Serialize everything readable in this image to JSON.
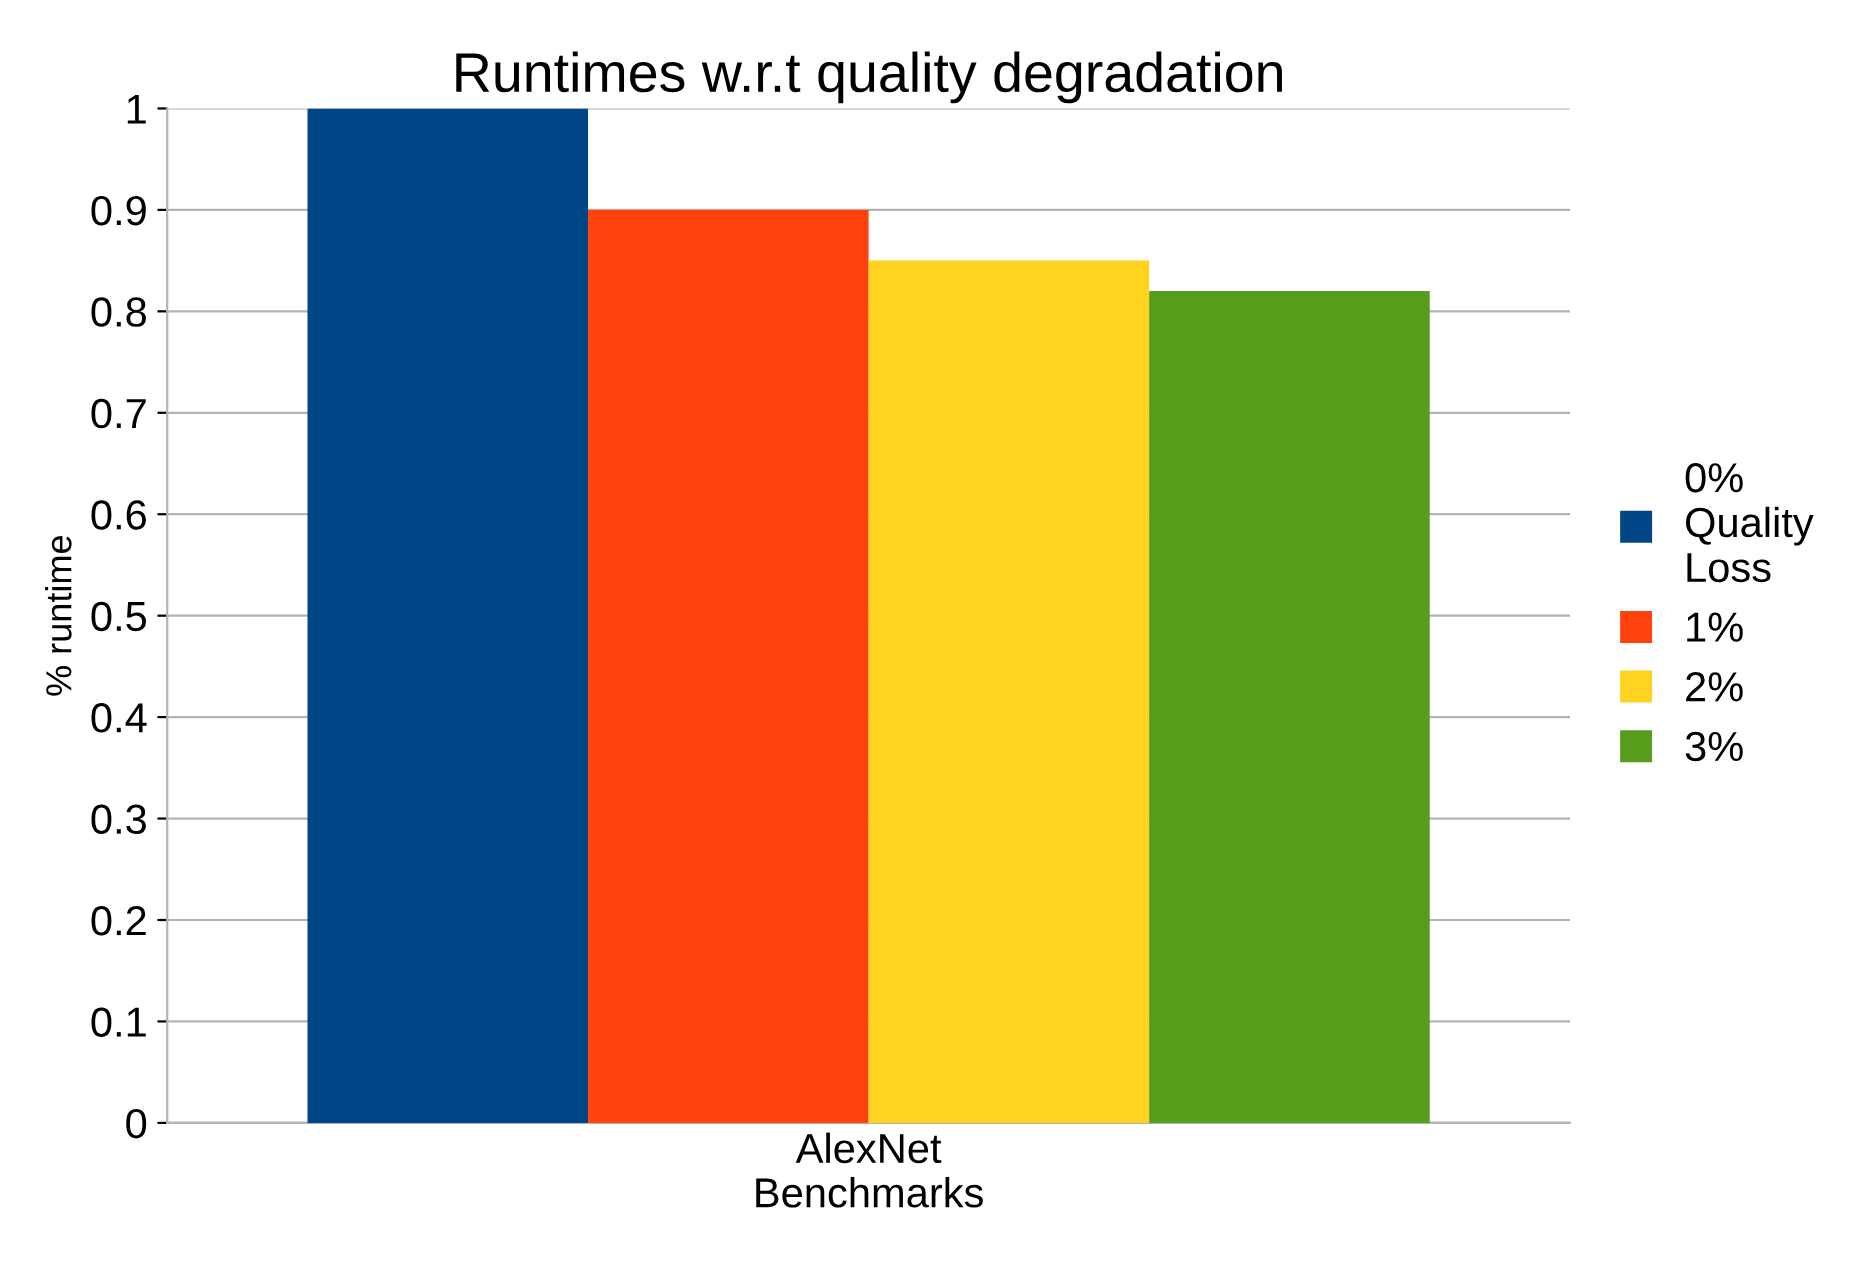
{
  "chart_data": {
    "type": "bar",
    "title": "Runtimes w.r.t quality degradation",
    "xlabel": "Benchmarks",
    "ylabel": "% runtime",
    "categories": [
      "AlexNet"
    ],
    "series": [
      {
        "name": "0% Quality Loss",
        "color": "#004586",
        "values": [
          1.0
        ]
      },
      {
        "name": "1%",
        "color": "#ff420e",
        "values": [
          0.9
        ]
      },
      {
        "name": "2%",
        "color": "#ffd320",
        "values": [
          0.85
        ]
      },
      {
        "name": "3%",
        "color": "#579d1c",
        "values": [
          0.82
        ]
      }
    ],
    "ylim": [
      0,
      1
    ],
    "yticks": [
      0,
      0.1,
      0.2,
      0.3,
      0.4,
      0.5,
      0.6,
      0.7,
      0.8,
      0.9,
      1
    ],
    "grid": "y",
    "legend": "right"
  }
}
